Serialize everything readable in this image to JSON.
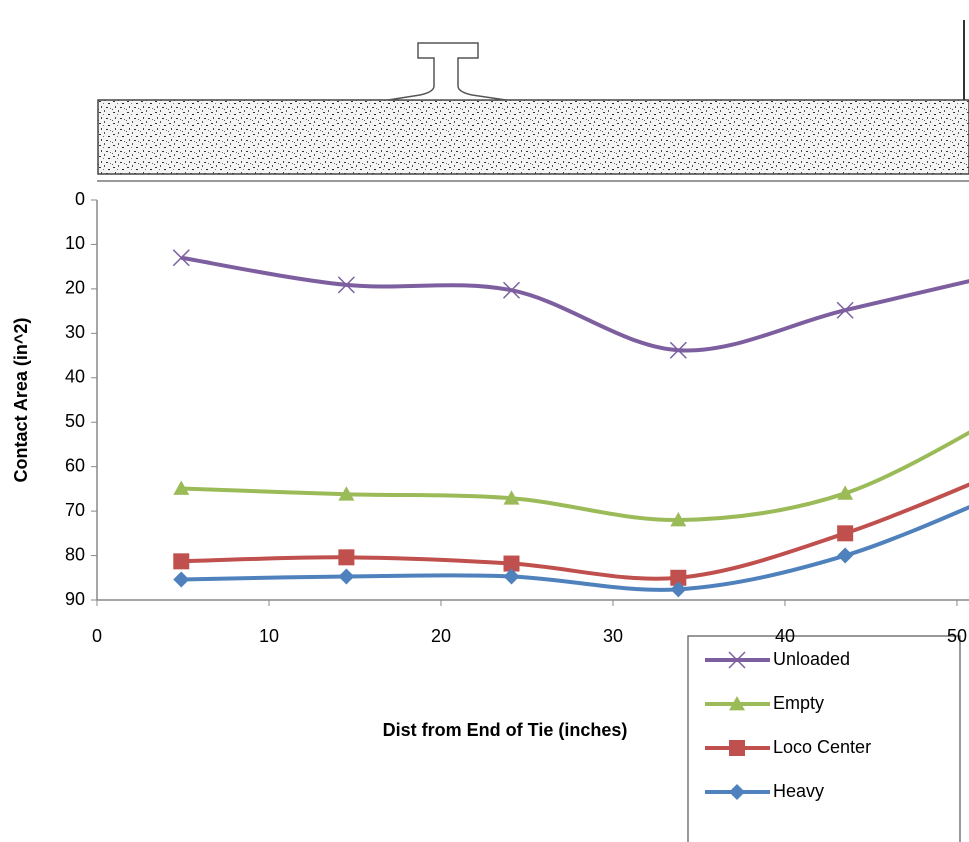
{
  "chart_data": {
    "type": "line",
    "x_label": "Dist from End of Tie (inches)",
    "y_label": "Contact Area (in^2)",
    "x": [
      4.9,
      14.5,
      24.1,
      33.8,
      43.5,
      53.2
    ],
    "series": [
      {
        "name": "Unloaded",
        "color": "#7d5fa0",
        "marker": "x",
        "values": [
          13,
          19.1,
          20.3,
          33.8,
          24.8,
          16
        ]
      },
      {
        "name": "Empty",
        "color": "#9bbb59",
        "marker": "triangle",
        "values": [
          64.9,
          66.2,
          67.1,
          72,
          66,
          47
        ]
      },
      {
        "name": "Loco Center",
        "color": "#c0504d",
        "marker": "square",
        "values": [
          81.3,
          80.4,
          81.8,
          85,
          75,
          60
        ]
      },
      {
        "name": "Heavy",
        "color": "#4f81bd",
        "marker": "diamond",
        "values": [
          85.4,
          84.7,
          84.7,
          87.6,
          80,
          65
        ]
      }
    ],
    "xlim": [
      0,
      50.7
    ],
    "xticks": [
      0,
      10,
      20,
      30,
      40,
      50
    ],
    "ylim": [
      0,
      90
    ],
    "yticks": [
      0,
      10,
      20,
      30,
      40,
      50,
      60,
      70,
      80,
      90
    ],
    "y_inverted": true,
    "grid": false
  }
}
